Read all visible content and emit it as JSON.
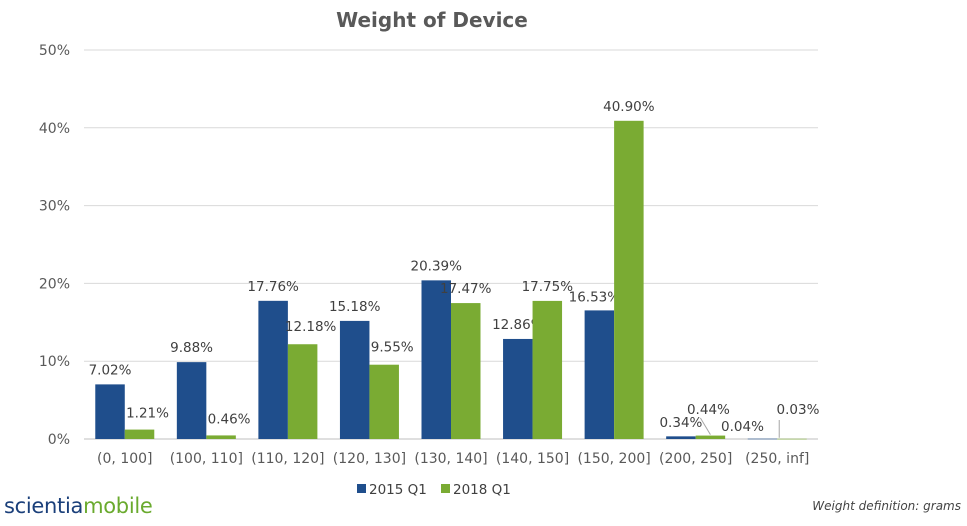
{
  "chart_data": {
    "type": "bar",
    "title": "Weight of Device",
    "categories": [
      "(0, 100]",
      "(100, 110]",
      "(110, 120]",
      "(120, 130]",
      "(130, 140]",
      "(140, 150]",
      "(150, 200]",
      "(200, 250]",
      "(250, inf]"
    ],
    "series": [
      {
        "name": "2015 Q1",
        "color": "#1f4e8c",
        "values": [
          7.02,
          9.88,
          17.76,
          15.18,
          20.39,
          12.86,
          16.53,
          0.34,
          0.04
        ],
        "labels": [
          "7.02%",
          "9.88%",
          "17.76%",
          "15.18%",
          "20.39%",
          "12.86%",
          "16.53%",
          "0.34%",
          "0.04%"
        ]
      },
      {
        "name": "2018 Q1",
        "color": "#7aab33",
        "values": [
          1.21,
          0.46,
          12.18,
          9.55,
          17.47,
          17.75,
          40.9,
          0.44,
          0.03
        ],
        "labels": [
          "1.21%",
          "0.46%",
          "12.18%",
          "9.55%",
          "17.47%",
          "17.75%",
          "40.90%",
          "0.44%",
          "0.03%"
        ]
      }
    ],
    "ylim": [
      0,
      50
    ],
    "yticks": [
      "0%",
      "10%",
      "20%",
      "30%",
      "40%",
      "50%"
    ],
    "grid": true,
    "legend_position": "bottom"
  },
  "footer": {
    "logo_part1": "scientia",
    "logo_part2": "mobile",
    "note": "Weight definition: grams"
  }
}
